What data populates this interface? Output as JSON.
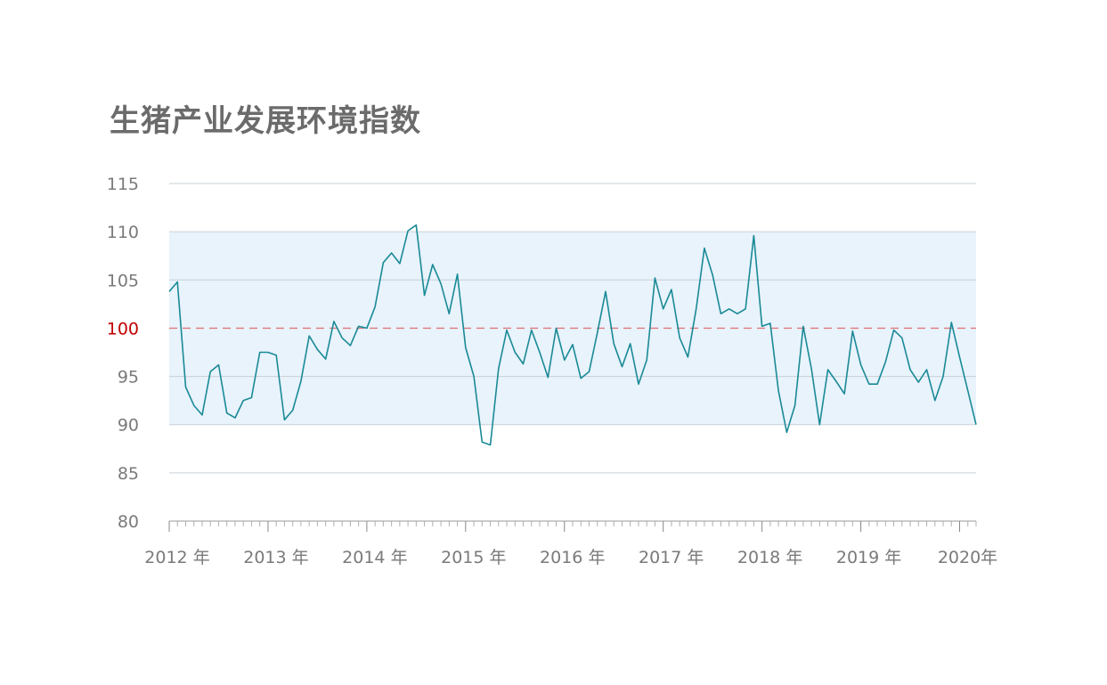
{
  "chart_data": {
    "type": "line",
    "title": "生猪产业发展环境指数",
    "xlabel": "",
    "ylabel": "",
    "ylim": [
      80,
      115
    ],
    "yticks": [
      "115",
      "110",
      "105",
      "100",
      "95",
      "90",
      "85",
      "80"
    ],
    "x_start": "2012-01",
    "x_end": "2020-04",
    "x_tick_labels": [
      "2012 年",
      "2013 年",
      "2014 年",
      "2015 年",
      "2016 年",
      "2017 年",
      "2018 年",
      "2019 年",
      "2020年"
    ],
    "reference_line": {
      "value": 100,
      "style": "dashed",
      "color": "#e07a7a"
    },
    "band": {
      "from": 90,
      "to": 110,
      "color": "#e8f3fc"
    },
    "grid": true,
    "series": [
      {
        "color": "#1a8a96",
        "values": [
          103.8,
          104.8,
          93.9,
          92.0,
          91.0,
          95.5,
          96.2,
          91.2,
          90.7,
          92.5,
          92.8,
          97.5,
          97.5,
          97.2,
          90.5,
          91.5,
          94.5,
          99.2,
          97.8,
          96.8,
          100.7,
          99.0,
          98.2,
          100.2,
          100.0,
          102.2,
          106.8,
          107.8,
          106.7,
          110.1,
          110.7,
          103.4,
          106.6,
          104.6,
          101.5,
          105.6,
          98.0,
          95.0,
          88.2,
          87.9,
          95.8,
          99.8,
          97.5,
          96.3,
          99.8,
          97.5,
          94.9,
          100.0,
          96.7,
          98.3,
          94.8,
          95.5,
          99.5,
          103.8,
          98.4,
          96.0,
          98.4,
          94.2,
          96.7,
          105.2,
          102.0,
          104.0,
          99.0,
          97.0,
          102.0,
          108.3,
          105.5,
          101.5,
          102.0,
          101.5,
          102.0,
          109.6,
          100.2,
          100.5,
          93.5,
          89.2,
          92.0,
          100.2,
          95.8,
          90.0,
          95.7,
          94.5,
          93.2,
          99.7,
          96.2,
          94.2,
          94.2,
          96.5,
          99.8,
          99.0,
          95.7,
          94.4,
          95.7,
          92.5,
          95.0,
          100.6,
          97.0,
          93.5,
          90.0
        ]
      }
    ]
  }
}
